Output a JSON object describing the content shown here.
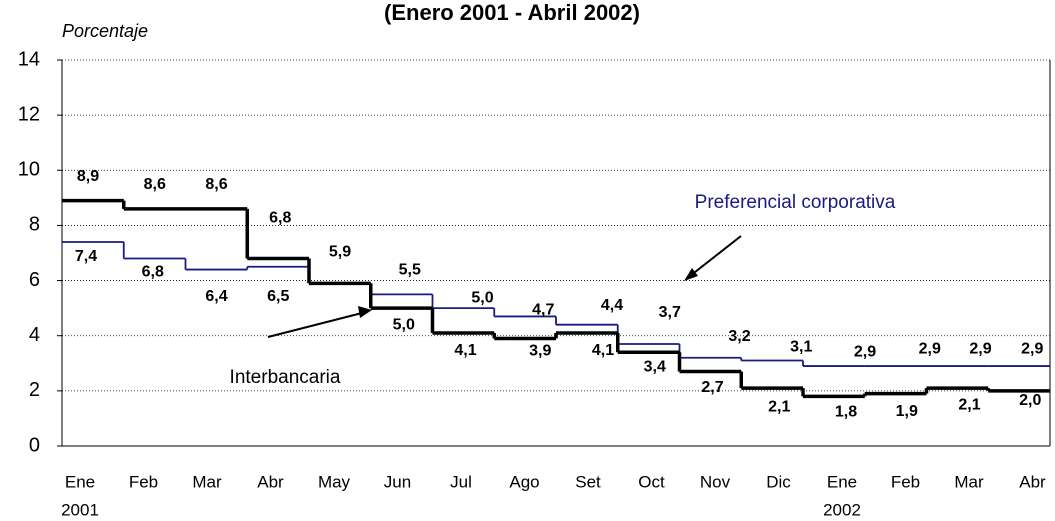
{
  "chart_data": {
    "type": "step",
    "title": "(Enero 2001 - Abril 2002)",
    "y_label": "Porcentaje",
    "categories": [
      "Ene",
      "Feb",
      "Mar",
      "Abr",
      "May",
      "Jun",
      "Jul",
      "Ago",
      "Set",
      "Oct",
      "Nov",
      "Dic",
      "Ene",
      "Feb",
      "Mar",
      "Abr"
    ],
    "category_years": [
      "2001",
      null,
      null,
      null,
      null,
      null,
      null,
      null,
      null,
      null,
      null,
      null,
      "2002",
      null,
      null,
      null
    ],
    "ylim": [
      0,
      14
    ],
    "yticks": [
      0,
      2,
      4,
      6,
      8,
      10,
      12,
      14
    ],
    "grid": true,
    "series": [
      {
        "name": "Interbancaria",
        "color": "#000000",
        "values": [
          8.9,
          8.6,
          8.6,
          6.8,
          5.9,
          5.0,
          4.1,
          3.9,
          4.1,
          3.4,
          2.7,
          2.1,
          1.8,
          1.9,
          2.1,
          2.0
        ],
        "value_labels": [
          "8,9",
          "8,6",
          "8,6",
          "6,8",
          "5,9",
          "5,0",
          "4,1",
          "3,9",
          "4,1",
          "3,4",
          "2,7",
          "2,1",
          "1,8",
          "1,9",
          "2,1",
          "2,0"
        ]
      },
      {
        "name": "Preferencial corporativa",
        "color": "#1a1a80",
        "values": [
          7.4,
          6.8,
          6.4,
          6.5,
          5.9,
          5.5,
          5.0,
          4.7,
          4.4,
          3.7,
          3.2,
          3.1,
          2.9,
          2.9,
          2.9,
          2.9
        ],
        "value_labels": [
          "7,4",
          "6,8",
          "6,4",
          "6,5",
          null,
          "5,5",
          "5,0",
          "4,7",
          "4,4",
          "3,7",
          "3,2",
          "3,1",
          "2,9",
          "2,9",
          "2,9",
          "2,9"
        ]
      }
    ]
  }
}
